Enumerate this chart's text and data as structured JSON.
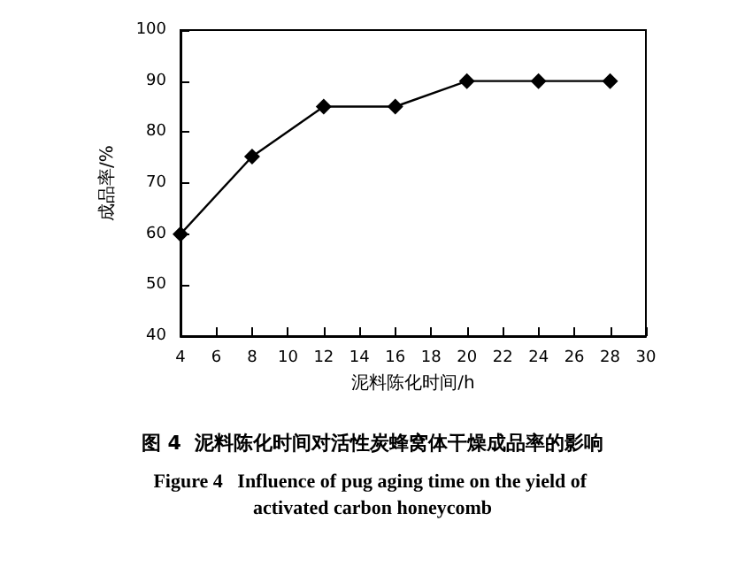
{
  "chart_data": {
    "type": "line",
    "title": "图 4  泥料陈化时间对活性炭蜂窝体干燥成品率的影响",
    "subtitle": "Figure 4   Influence of pug aging time on the yield of activated carbon honeycomb",
    "xlabel": "泥料陈化时间/h",
    "ylabel": "成品率/%",
    "x": [
      4,
      8,
      12,
      16,
      20,
      24,
      28
    ],
    "series": [
      {
        "color": "#000000",
        "values": [
          60,
          75.2,
          85,
          85,
          90,
          90,
          90
        ]
      }
    ],
    "xlim": [
      4,
      30
    ],
    "xticks": [
      4,
      6,
      8,
      10,
      12,
      14,
      16,
      18,
      20,
      22,
      24,
      26,
      28,
      30
    ],
    "ylim": [
      40,
      100
    ],
    "yticks": [
      40,
      50,
      60,
      70,
      80,
      90,
      100
    ],
    "grid": false,
    "marker": "diamond",
    "line_style": "solid"
  }
}
